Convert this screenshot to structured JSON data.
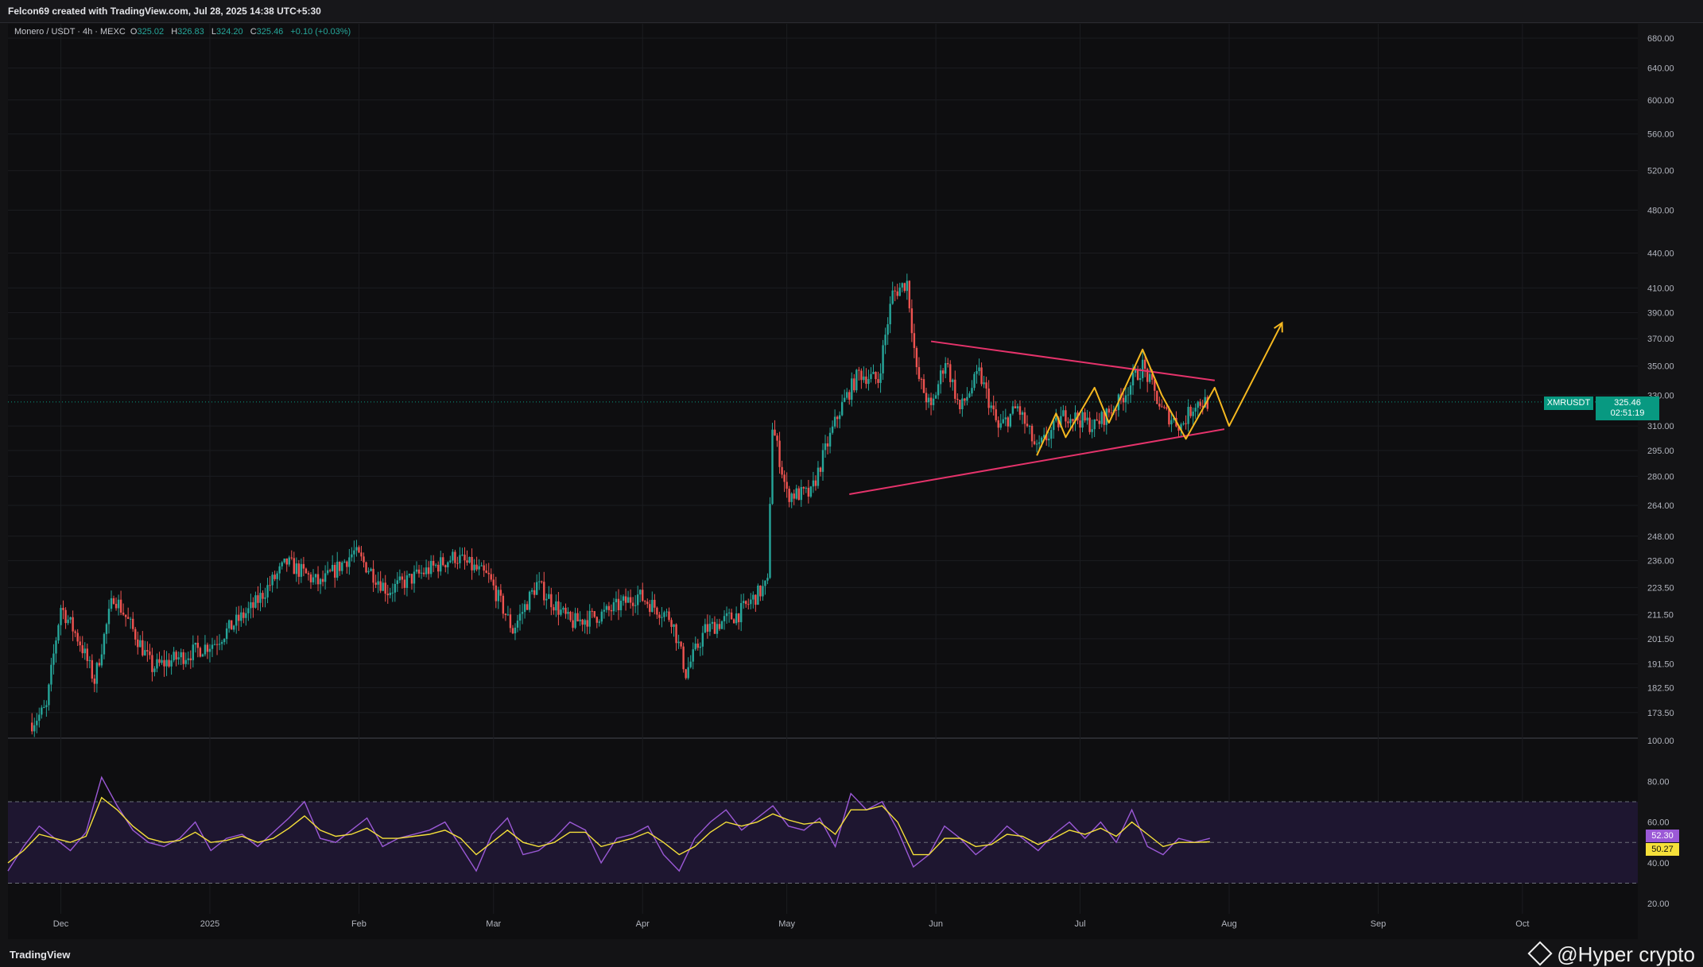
{
  "header": {
    "title": "Felcon69 created with TradingView.com, Jul 28, 2025 14:38 UTC+5:30"
  },
  "legend": {
    "symbol": "Monero / USDT · 4h · MEXC",
    "open_label": "O",
    "open": "325.02",
    "high_label": "H",
    "high": "326.83",
    "low_label": "L",
    "low": "324.20",
    "close_label": "C",
    "close": "325.46",
    "change": "+0.10 (+0.03%)"
  },
  "price_tag": {
    "symbol": "XMRUSDT",
    "price": "325.46",
    "countdown": "02:51:19"
  },
  "rsi_tags": {
    "rsi": "52.30",
    "ma": "50.27"
  },
  "footer": {
    "logo": "TradingView",
    "watermark": "@Hyper crypto"
  },
  "colors": {
    "up": "#26a69a",
    "down": "#ef5350",
    "trendline": "#e5336b",
    "projection": "#f5b820",
    "rsi": "#9b59d6",
    "rsi_ma": "#f5e03a"
  },
  "chart_data": [
    {
      "type": "candlestick",
      "title": "Monero / USDT · 4h · MEXC",
      "y_scale": "log",
      "ylim": [
        165,
        700
      ],
      "y_ticks": [
        "680.00",
        "640.00",
        "600.00",
        "560.00",
        "520.00",
        "480.00",
        "440.00",
        "410.00",
        "390.00",
        "370.00",
        "350.00",
        "330.00",
        "310.00",
        "295.00",
        "280.00",
        "264.00",
        "248.00",
        "236.00",
        "223.50",
        "211.50",
        "201.50",
        "191.50",
        "182.50",
        "173.50"
      ],
      "x_ticks": [
        "Dec",
        "2025",
        "Feb",
        "Mar",
        "Apr",
        "May",
        "Jun",
        "Jul",
        "Aug",
        "Sep",
        "Oct"
      ],
      "grid": true,
      "last_price": 325.46,
      "price_path": [
        [
          "2024-11-25",
          170
        ],
        [
          "2024-11-28",
          175
        ],
        [
          "2024-12-01",
          215
        ],
        [
          "2024-12-05",
          200
        ],
        [
          "2024-12-08",
          185
        ],
        [
          "2024-12-12",
          220
        ],
        [
          "2024-12-16",
          205
        ],
        [
          "2024-12-20",
          190
        ],
        [
          "2024-12-27",
          195
        ],
        [
          "2025-01-02",
          200
        ],
        [
          "2025-01-10",
          215
        ],
        [
          "2025-01-17",
          235
        ],
        [
          "2025-01-24",
          225
        ],
        [
          "2025-01-31",
          240
        ],
        [
          "2025-02-07",
          222
        ],
        [
          "2025-02-14",
          230
        ],
        [
          "2025-02-21",
          238
        ],
        [
          "2025-02-28",
          228
        ],
        [
          "2025-03-05",
          205
        ],
        [
          "2025-03-10",
          225
        ],
        [
          "2025-03-17",
          208
        ],
        [
          "2025-03-24",
          212
        ],
        [
          "2025-03-31",
          220
        ],
        [
          "2025-04-07",
          210
        ],
        [
          "2025-04-10",
          188
        ],
        [
          "2025-04-14",
          205
        ],
        [
          "2025-04-21",
          212
        ],
        [
          "2025-04-27",
          225
        ],
        [
          "2025-04-28",
          310
        ],
        [
          "2025-05-01",
          270
        ],
        [
          "2025-05-06",
          270
        ],
        [
          "2025-05-12",
          320
        ],
        [
          "2025-05-16",
          345
        ],
        [
          "2025-05-20",
          340
        ],
        [
          "2025-05-23",
          405
        ],
        [
          "2025-05-26",
          415
        ],
        [
          "2025-05-28",
          345
        ],
        [
          "2025-05-31",
          320
        ],
        [
          "2025-06-03",
          355
        ],
        [
          "2025-06-06",
          320
        ],
        [
          "2025-06-10",
          345
        ],
        [
          "2025-06-14",
          308
        ],
        [
          "2025-06-18",
          322
        ],
        [
          "2025-06-22",
          295
        ],
        [
          "2025-06-28",
          318
        ],
        [
          "2025-07-04",
          310
        ],
        [
          "2025-07-09",
          325
        ],
        [
          "2025-07-14",
          350
        ],
        [
          "2025-07-18",
          320
        ],
        [
          "2025-07-22",
          310
        ],
        [
          "2025-07-25",
          325
        ],
        [
          "2025-07-28",
          325.46
        ]
      ],
      "annotations": {
        "upper_trendline": [
          [
            "2025-05-31",
            368
          ],
          [
            "2025-07-29",
            340
          ]
        ],
        "lower_trendline": [
          [
            "2025-05-14",
            270
          ],
          [
            "2025-07-31",
            308
          ]
        ],
        "projection_path": [
          [
            "2025-06-22",
            292
          ],
          [
            "2025-06-26",
            318
          ],
          [
            "2025-06-28",
            303
          ],
          [
            "2025-07-04",
            335
          ],
          [
            "2025-07-07",
            312
          ],
          [
            "2025-07-14",
            362
          ],
          [
            "2025-07-18",
            330
          ],
          [
            "2025-07-23",
            302
          ],
          [
            "2025-07-29",
            335
          ],
          [
            "2025-08-01",
            310
          ],
          [
            "2025-08-12",
            382
          ]
        ]
      }
    },
    {
      "type": "line",
      "title": "RSI",
      "ylim": [
        15,
        100
      ],
      "y_ticks": [
        "100.00",
        "80.00",
        "60.00",
        "40.00",
        "20.00"
      ],
      "bands": [
        70,
        50,
        30
      ],
      "series": [
        {
          "values": [
            36,
            48,
            58,
            52,
            46,
            55,
            82,
            68,
            56,
            50,
            48,
            52,
            60,
            46,
            52,
            54,
            48,
            55,
            62,
            70,
            52,
            50,
            56,
            62,
            48,
            52,
            54,
            56,
            60,
            48,
            36,
            54,
            62,
            44,
            46,
            52,
            60,
            56,
            40,
            52,
            54,
            58,
            44,
            36,
            52,
            60,
            66,
            56,
            62,
            68,
            58,
            56,
            62,
            48,
            74,
            66,
            70,
            56,
            38,
            44,
            58,
            52,
            44,
            50,
            58,
            52,
            46,
            54,
            60,
            52,
            60,
            50,
            66,
            48,
            44,
            52,
            50,
            52
          ]
        },
        {
          "values": [
            40,
            46,
            54,
            52,
            50,
            53,
            72,
            66,
            58,
            52,
            50,
            51,
            55,
            50,
            51,
            53,
            50,
            52,
            57,
            63,
            56,
            53,
            54,
            57,
            52,
            52,
            53,
            54,
            56,
            52,
            44,
            50,
            56,
            50,
            48,
            50,
            55,
            55,
            48,
            50,
            52,
            55,
            50,
            44,
            48,
            55,
            60,
            58,
            60,
            64,
            61,
            59,
            60,
            54,
            66,
            66,
            68,
            60,
            44,
            44,
            52,
            52,
            48,
            49,
            54,
            53,
            49,
            52,
            56,
            54,
            57,
            53,
            60,
            54,
            48,
            50,
            50,
            50.27
          ]
        }
      ],
      "last_value": 52.3,
      "last_ma": 50.27
    }
  ]
}
